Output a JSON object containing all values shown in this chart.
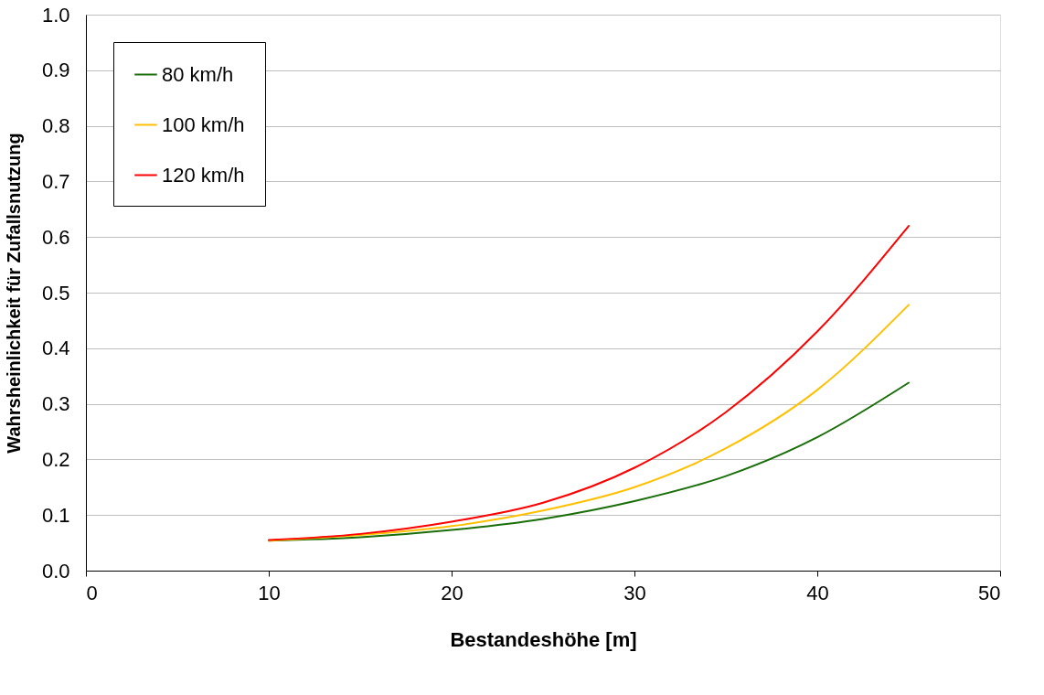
{
  "chart_data": {
    "type": "line",
    "xlabel": "Bestandeshöhe [m]",
    "ylabel": "Wahrsheinlichkeit für Zufallsnutzung",
    "x": [
      10,
      15,
      20,
      25,
      30,
      35,
      40,
      45
    ],
    "series": [
      {
        "name": "80 km/h",
        "color": "#1a6e0a",
        "values": [
          0.054,
          0.06,
          0.073,
          0.093,
          0.125,
          0.17,
          0.24,
          0.338
        ]
      },
      {
        "name": "100 km/h",
        "color": "#ffc000",
        "values": [
          0.054,
          0.064,
          0.08,
          0.108,
          0.15,
          0.22,
          0.325,
          0.478
        ]
      },
      {
        "name": "120 km/h",
        "color": "#ff0000",
        "values": [
          0.055,
          0.066,
          0.088,
          0.122,
          0.185,
          0.285,
          0.43,
          0.62
        ]
      }
    ],
    "xlim": [
      0,
      50
    ],
    "xticks": [
      0,
      10,
      20,
      30,
      40,
      50
    ],
    "ylim": [
      0,
      1.0
    ],
    "yticks": [
      {
        "value": 0,
        "label": "0.0"
      },
      0.1,
      0.2,
      0.3,
      0.4,
      0.5,
      0.6,
      0.7,
      0.8,
      0.9,
      {
        "value": 1.0,
        "label": "1.0"
      }
    ],
    "grid": "y",
    "legend": "top left",
    "marker": "none",
    "line_style": "solid"
  }
}
